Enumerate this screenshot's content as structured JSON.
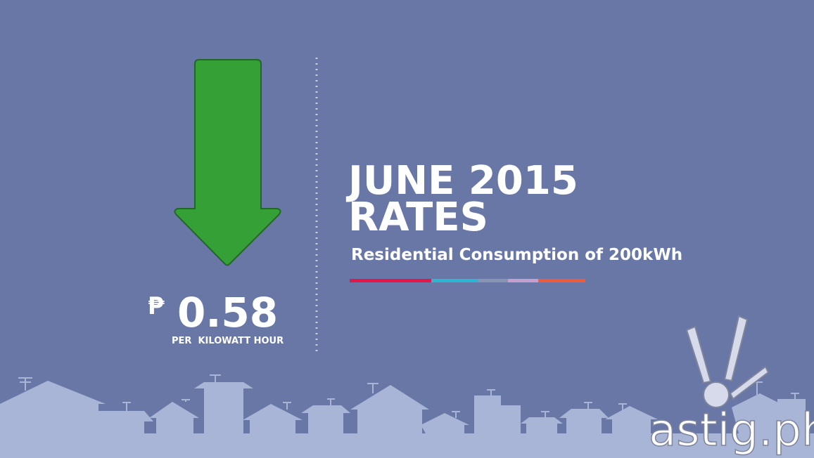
{
  "rate": {
    "currency": "₱",
    "amount": 0.58,
    "unit": "PER  KILOWATT HOUR"
  },
  "heading": {
    "line1": "JUNE 2015",
    "line2": "RATES"
  },
  "subtitle": "Residential Consumption of 200kWh",
  "watermark": "astig.ph"
}
